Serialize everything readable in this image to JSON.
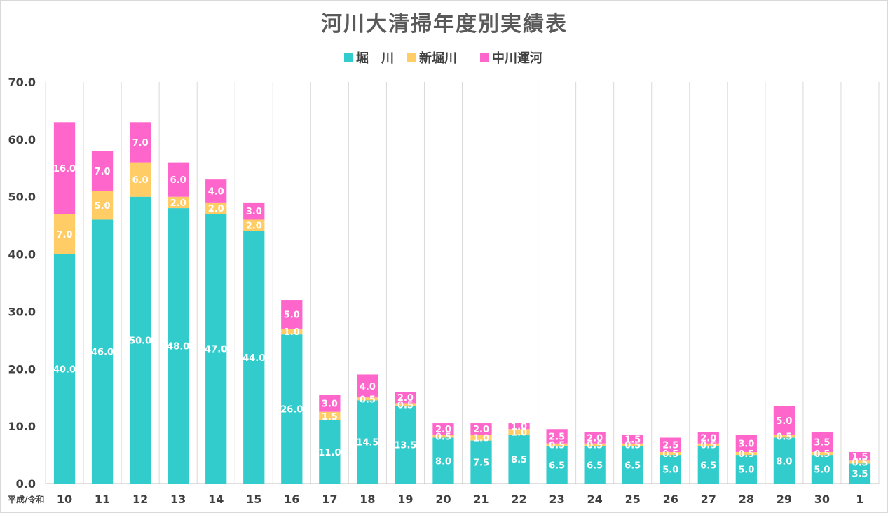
{
  "chart_data": {
    "type": "bar",
    "stacked": true,
    "title": "河川大清掃年度別実績表",
    "xlabel": "",
    "ylabel": "",
    "x_prefix_label": "平成/令和",
    "ylim": [
      0,
      70
    ],
    "yticks": [
      "0.0",
      "10.0",
      "20.0",
      "30.0",
      "40.0",
      "50.0",
      "60.0",
      "70.0"
    ],
    "legend_position": "top-center",
    "grid": "vertical",
    "categories": [
      "10",
      "11",
      "12",
      "13",
      "14",
      "15",
      "16",
      "17",
      "18",
      "19",
      "20",
      "21",
      "22",
      "23",
      "24",
      "25",
      "26",
      "27",
      "28",
      "29",
      "30",
      "1"
    ],
    "series": [
      {
        "name": "堀　川",
        "color": "#33cccc",
        "values": [
          40.0,
          46.0,
          50.0,
          48.0,
          47.0,
          44.0,
          26.0,
          11.0,
          14.5,
          13.5,
          8.0,
          7.5,
          8.5,
          6.5,
          6.5,
          6.5,
          5.0,
          6.5,
          5.0,
          8.0,
          5.0,
          3.5
        ],
        "labels": [
          "40.0",
          "46.0",
          "50.0",
          "48.0",
          "47.0",
          "44.0",
          "26.0",
          "11.0",
          "14.5",
          "13.5",
          "8.0",
          "7.5",
          "8.5",
          "6.5",
          "6.5",
          "6.5",
          "5.0",
          "6.5",
          "5.0",
          "8.0",
          "5.0",
          "3.5"
        ]
      },
      {
        "name": "新堀川",
        "color": "#ffcc66",
        "values": [
          7.0,
          5.0,
          6.0,
          2.0,
          2.0,
          2.0,
          1.0,
          1.5,
          0.5,
          0.5,
          0.5,
          1.0,
          1.0,
          0.5,
          0.5,
          0.5,
          0.5,
          0.5,
          0.5,
          0.5,
          0.5,
          0.5
        ],
        "labels": [
          "7.0",
          "5.0",
          "6.0",
          "2.0",
          "2.0",
          "2.0",
          "1.0",
          "1.5",
          "0.5",
          "0.5",
          "0.5",
          "1.0",
          "1.0",
          "0.5",
          "0.5",
          "0.5",
          "0.5",
          "0.5",
          "0.5",
          "0.5",
          "0.5",
          "0.5"
        ]
      },
      {
        "name": "中川運河",
        "color": "#ff66cc",
        "values": [
          16.0,
          7.0,
          7.0,
          6.0,
          4.0,
          3.0,
          5.0,
          3.0,
          4.0,
          2.0,
          2.0,
          2.0,
          1.0,
          2.5,
          2.0,
          1.5,
          2.5,
          2.0,
          3.0,
          5.0,
          3.5,
          1.5
        ],
        "labels": [
          "16.0",
          "7.0",
          "7.0",
          "6.0",
          "4.0",
          "3.0",
          "5.0",
          "3.0",
          "4.0",
          "2.0",
          "2.0",
          "2.0",
          "1.0",
          "2.5",
          "2.0",
          "1.5",
          "2.5",
          "2.0",
          "3.0",
          "5.0",
          "3.5",
          "1.5"
        ]
      }
    ]
  }
}
